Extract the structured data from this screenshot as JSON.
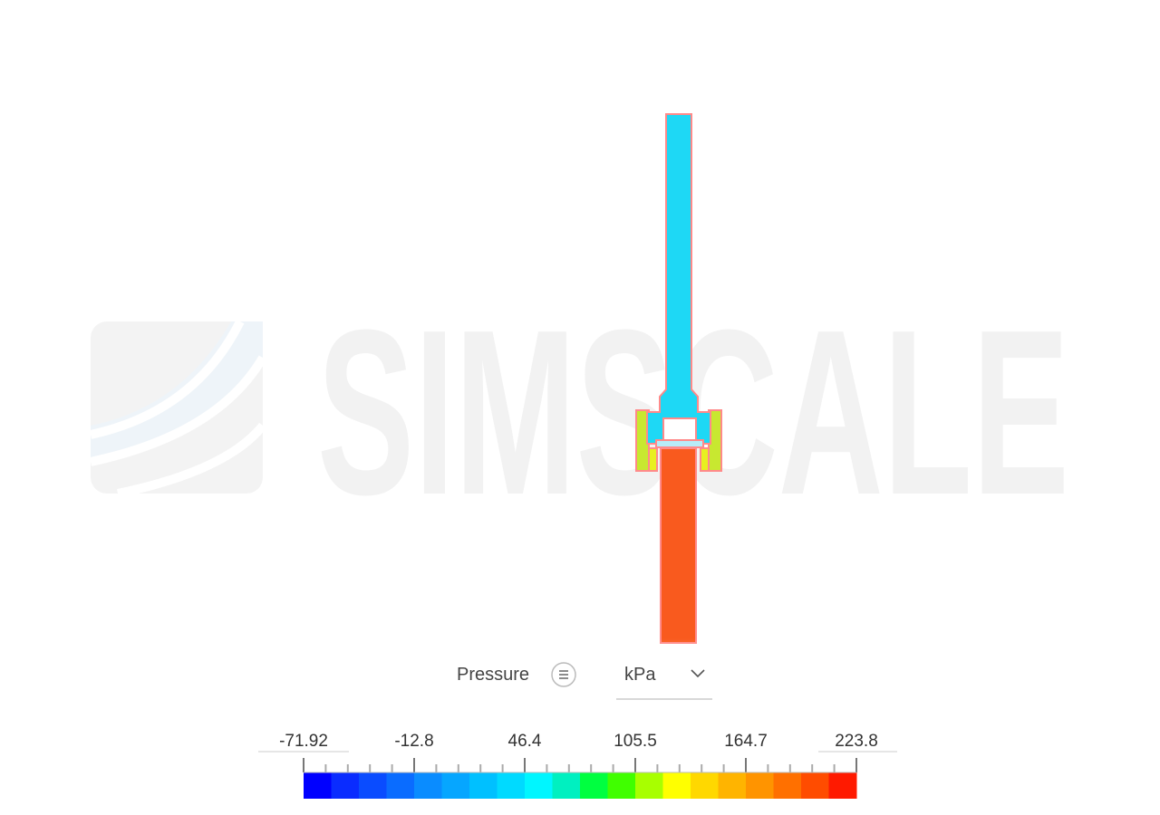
{
  "watermark": "SIMSCALE",
  "legend": {
    "title": "Pressure",
    "unit": "kPa",
    "labels": [
      "-71.92",
      "-12.8",
      "46.4",
      "105.5",
      "164.7",
      "223.8"
    ],
    "colors": [
      "#0000ff",
      "#0a2cff",
      "#0a4cff",
      "#0a6cff",
      "#0a8cff",
      "#06a6ff",
      "#00c0ff",
      "#00daff",
      "#00f6ff",
      "#00f0c0",
      "#00ff40",
      "#40ff00",
      "#a8ff00",
      "#ffff00",
      "#ffd800",
      "#ffb400",
      "#ff9400",
      "#ff7000",
      "#ff4c00",
      "#ff1a00"
    ]
  }
}
